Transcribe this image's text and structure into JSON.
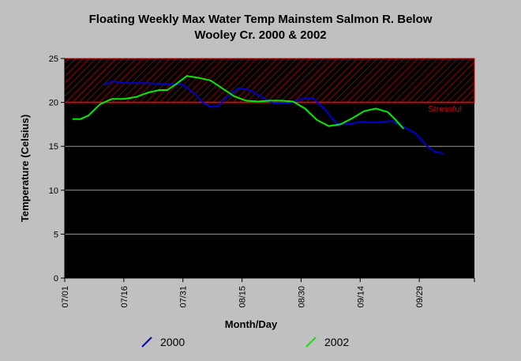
{
  "chart_data": {
    "type": "line",
    "title_line1": "Floating Weekly Max Water Temp Mainstem Salmon R. Below",
    "title_line2": "Wooley Cr. 2000 & 2002",
    "xlabel": "Month/Day",
    "ylabel": "Temperature (Celsius)",
    "xlim": [
      "07/01",
      "10/13"
    ],
    "ylim": [
      0,
      25
    ],
    "yticks": [
      0,
      5,
      10,
      15,
      20,
      25
    ],
    "xticks": [
      "07/01",
      "07/16",
      "07/31",
      "08/15",
      "08/30",
      "09/14",
      "09/29"
    ],
    "grid": true,
    "legend_position": "bottom",
    "stressful_band": {
      "from": 20,
      "to": 25,
      "label": "Stressful",
      "color": "#ff0000"
    },
    "series": [
      {
        "name": "2000",
        "color": "#0000cc",
        "points": [
          [
            "07/11",
            22.0
          ],
          [
            "07/13",
            22.4
          ],
          [
            "07/16",
            22.2
          ],
          [
            "07/21",
            22.2
          ],
          [
            "07/26",
            22.1
          ],
          [
            "07/29",
            22.1
          ],
          [
            "07/31",
            22.0
          ],
          [
            "08/03",
            21.0
          ],
          [
            "08/05",
            20.0
          ],
          [
            "08/07",
            19.5
          ],
          [
            "08/09",
            19.6
          ],
          [
            "08/11",
            20.5
          ],
          [
            "08/14",
            21.6
          ],
          [
            "08/17",
            21.4
          ],
          [
            "08/20",
            20.6
          ],
          [
            "08/23",
            19.9
          ],
          [
            "08/27",
            19.9
          ],
          [
            "08/30",
            20.4
          ],
          [
            "09/02",
            20.5
          ],
          [
            "09/05",
            19.2
          ],
          [
            "09/08",
            17.6
          ],
          [
            "09/11",
            17.5
          ],
          [
            "09/14",
            17.8
          ],
          [
            "09/18",
            17.7
          ],
          [
            "09/22",
            17.9
          ],
          [
            "09/25",
            17.2
          ],
          [
            "09/28",
            16.5
          ],
          [
            "10/01",
            15.0
          ],
          [
            "10/03",
            14.4
          ],
          [
            "10/05",
            14.2
          ]
        ]
      },
      {
        "name": "2002",
        "color": "#00ee00",
        "points": [
          [
            "07/03",
            18.1
          ],
          [
            "07/05",
            18.1
          ],
          [
            "07/07",
            18.5
          ],
          [
            "07/10",
            19.8
          ],
          [
            "07/13",
            20.4
          ],
          [
            "07/16",
            20.4
          ],
          [
            "07/19",
            20.6
          ],
          [
            "07/22",
            21.1
          ],
          [
            "07/25",
            21.4
          ],
          [
            "07/27",
            21.4
          ],
          [
            "07/29",
            22.0
          ],
          [
            "08/01",
            23.0
          ],
          [
            "08/04",
            22.8
          ],
          [
            "08/07",
            22.5
          ],
          [
            "08/10",
            21.6
          ],
          [
            "08/13",
            20.7
          ],
          [
            "08/16",
            20.2
          ],
          [
            "08/19",
            20.1
          ],
          [
            "08/22",
            20.2
          ],
          [
            "08/25",
            20.2
          ],
          [
            "08/28",
            20.1
          ],
          [
            "08/31",
            19.3
          ],
          [
            "09/03",
            18.0
          ],
          [
            "09/06",
            17.3
          ],
          [
            "09/09",
            17.5
          ],
          [
            "09/12",
            18.2
          ],
          [
            "09/15",
            19.0
          ],
          [
            "09/18",
            19.3
          ],
          [
            "09/21",
            18.9
          ],
          [
            "09/23",
            18.0
          ],
          [
            "09/25",
            17.0
          ]
        ]
      }
    ]
  }
}
